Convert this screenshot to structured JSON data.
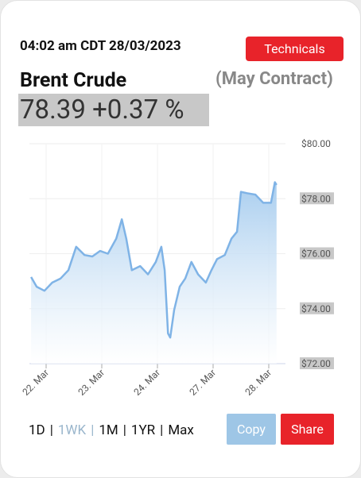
{
  "header": {
    "timestamp": "04:02 am CDT 28/03/2023",
    "technicals_button": "Technicals",
    "instrument": "Brent Crude",
    "contract": "(May Contract)",
    "price": "78.39",
    "change": "+0.37 %"
  },
  "chart_data": {
    "type": "area",
    "color": "#7fb3e6",
    "grid": true,
    "x": [
      -0.27,
      -0.17,
      -0.03,
      0.11,
      0.26,
      0.4,
      0.54,
      0.69,
      0.83,
      0.97,
      1.11,
      1.26,
      1.36,
      1.44,
      1.54,
      1.69,
      1.83,
      1.97,
      2.07,
      2.13,
      2.19,
      2.23,
      2.3,
      2.4,
      2.5,
      2.61,
      2.73,
      2.87,
      2.97,
      3.07,
      3.21,
      3.33,
      3.43,
      3.5,
      3.61,
      3.76,
      3.9,
      4.04,
      4.11,
      4.14
    ],
    "values": [
      75.15,
      74.8,
      74.65,
      74.95,
      75.1,
      75.4,
      76.25,
      75.95,
      75.9,
      76.1,
      76.0,
      76.55,
      77.25,
      76.55,
      75.4,
      75.55,
      75.25,
      75.7,
      76.25,
      75.4,
      73.1,
      72.95,
      73.95,
      74.8,
      75.1,
      75.7,
      75.25,
      74.95,
      75.4,
      75.8,
      75.95,
      76.55,
      76.8,
      78.25,
      78.2,
      78.15,
      77.85,
      77.85,
      78.6,
      78.5
    ],
    "xlim": [
      -0.3,
      4.3
    ],
    "xticks": [
      {
        "value": 0,
        "label": "22. Mar"
      },
      {
        "value": 1,
        "label": "23. Mar"
      },
      {
        "value": 2,
        "label": "24. Mar"
      },
      {
        "value": 3,
        "label": "27. Mar"
      },
      {
        "value": 4,
        "label": "28. Mar"
      }
    ],
    "ylim": [
      72,
      80
    ],
    "yticks": [
      {
        "value": 80,
        "label": "$80.00"
      },
      {
        "value": 78,
        "label": "$78.00"
      },
      {
        "value": 76,
        "label": "$76.00"
      },
      {
        "value": 74,
        "label": "$74.00"
      },
      {
        "value": 72,
        "label": "$72.00"
      }
    ]
  },
  "controls": {
    "ranges": [
      "1D",
      "1WK",
      "1M",
      "1YR",
      "Max"
    ],
    "separator": "|",
    "copy_button": "Copy",
    "share_button": "Share"
  }
}
